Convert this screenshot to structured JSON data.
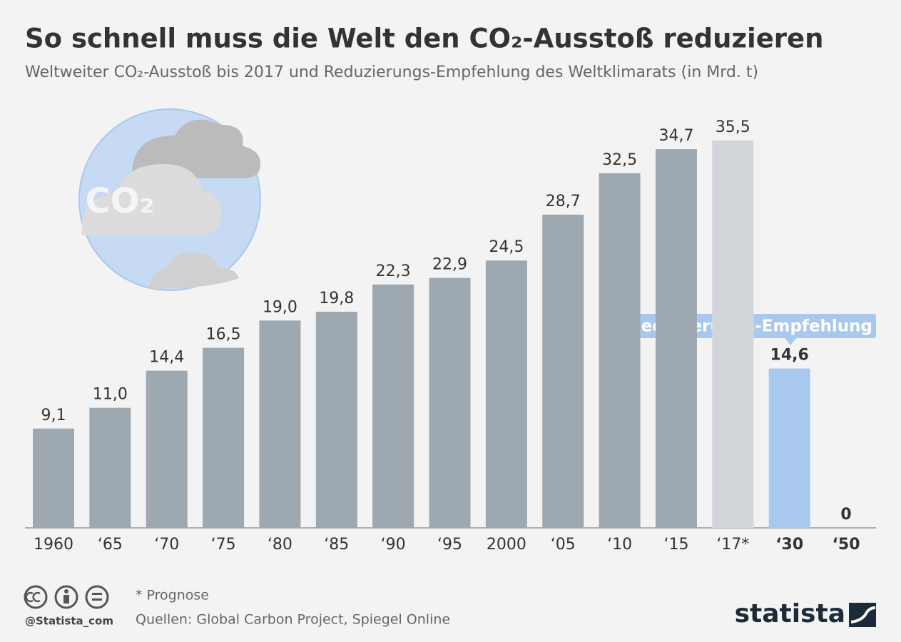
{
  "chart_data": {
    "type": "bar",
    "title": "So schnell muss die Welt den CO₂-Ausstoß reduzieren",
    "subtitle": "Weltweiter CO₂-Ausstoß bis 2017 und Reduzierungs-Empfehlung des Weltklimarats (in Mrd. t)",
    "categories": [
      "1960",
      "‘65",
      "‘70",
      "‘75",
      "‘80",
      "‘85",
      "‘90",
      "‘95",
      "2000",
      "‘05",
      "‘10",
      "‘15",
      "‘17*",
      "‘30",
      "‘50"
    ],
    "values": [
      9.1,
      11.0,
      14.4,
      16.5,
      19.0,
      19.8,
      22.3,
      22.9,
      24.5,
      28.7,
      32.5,
      34.7,
      35.5,
      14.6,
      0
    ],
    "value_labels": [
      "9,1",
      "11,0",
      "14,4",
      "16,5",
      "19,0",
      "19,8",
      "22,3",
      "22,9",
      "24,5",
      "28,7",
      "32,5",
      "34,7",
      "35,5",
      "14,6",
      "0"
    ],
    "colors": [
      "#9ea8b1",
      "#9ea8b1",
      "#9ea8b1",
      "#9ea8b1",
      "#9ea8b1",
      "#9ea8b1",
      "#9ea8b1",
      "#9ea8b1",
      "#9ea8b1",
      "#9ea8b1",
      "#9ea8b1",
      "#9ea8b1",
      "#d2d6da",
      "#a9c8ee",
      "#a9c8ee"
    ],
    "ylim": [
      0,
      40
    ],
    "annotation": "Reduzierungs-Empfehlung",
    "icon_text": "CO₂",
    "note": "* Prognose",
    "source": "Quellen: Global Carbon Project, Spiegel Online",
    "credit": "@Statista_com",
    "brand": "statista"
  }
}
